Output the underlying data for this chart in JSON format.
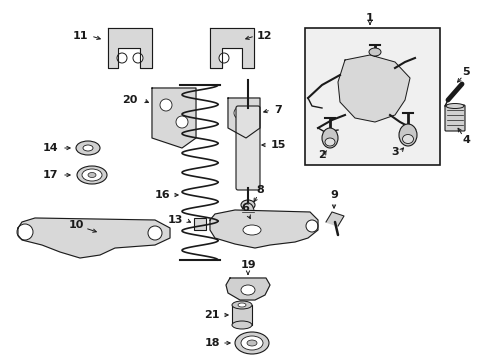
{
  "bg_color": "#ffffff",
  "line_color": "#1a1a1a",
  "figsize": [
    4.89,
    3.6
  ],
  "dpi": 100,
  "xlim": [
    0,
    489
  ],
  "ylim": [
    360,
    0
  ]
}
